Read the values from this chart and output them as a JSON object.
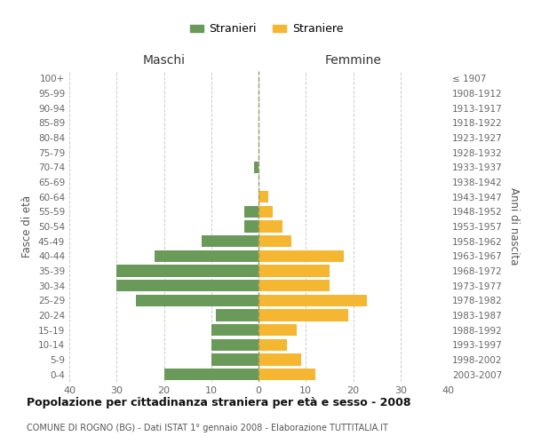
{
  "age_groups": [
    "0-4",
    "5-9",
    "10-14",
    "15-19",
    "20-24",
    "25-29",
    "30-34",
    "35-39",
    "40-44",
    "45-49",
    "50-54",
    "55-59",
    "60-64",
    "65-69",
    "70-74",
    "75-79",
    "80-84",
    "85-89",
    "90-94",
    "95-99",
    "100+"
  ],
  "birth_years": [
    "2003-2007",
    "1998-2002",
    "1993-1997",
    "1988-1992",
    "1983-1987",
    "1978-1982",
    "1973-1977",
    "1968-1972",
    "1963-1967",
    "1958-1962",
    "1953-1957",
    "1948-1952",
    "1943-1947",
    "1938-1942",
    "1933-1937",
    "1928-1932",
    "1923-1927",
    "1918-1922",
    "1913-1917",
    "1908-1912",
    "≤ 1907"
  ],
  "males": [
    20,
    10,
    10,
    10,
    9,
    26,
    30,
    30,
    22,
    12,
    3,
    3,
    0,
    0,
    1,
    0,
    0,
    0,
    0,
    0,
    0
  ],
  "females": [
    12,
    9,
    6,
    8,
    19,
    23,
    15,
    15,
    18,
    7,
    5,
    3,
    2,
    0,
    0,
    0,
    0,
    0,
    0,
    0,
    0
  ],
  "male_color": "#6a9a5a",
  "female_color": "#f5b731",
  "grid_color": "#cccccc",
  "dashed_line_color": "#999966",
  "title": "Popolazione per cittadinanza straniera per età e sesso - 2008",
  "subtitle": "COMUNE DI ROGNO (BG) - Dati ISTAT 1° gennaio 2008 - Elaborazione TUTTITALIA.IT",
  "ylabel_left": "Fasce di età",
  "ylabel_right": "Anni di nascita",
  "xlabel_left": "Maschi",
  "xlabel_right": "Femmine",
  "legend_male": "Stranieri",
  "legend_female": "Straniere",
  "xlim": 40,
  "background_color": "#ffffff",
  "bar_height": 0.8
}
